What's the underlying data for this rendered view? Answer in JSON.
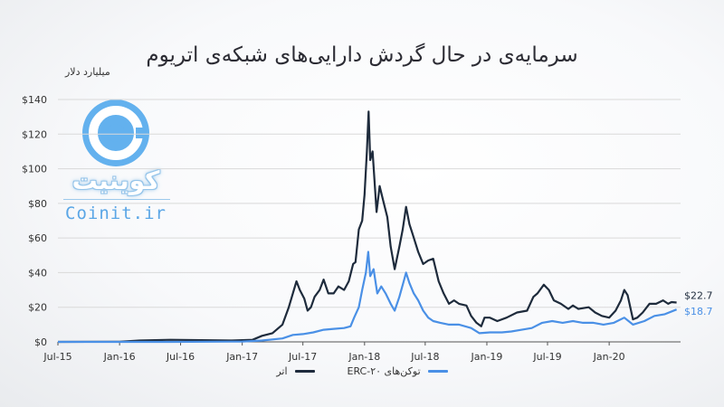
{
  "title": "سرمایه‌ی در حال گردش دارایی‌های شبکه‌ی اتریوم",
  "unit_label": "میلیارد دلار",
  "logo": {
    "brand_fa": "کوینیت",
    "brand_en": "Coinit.ir",
    "icon": "coin-logo-icon"
  },
  "colors": {
    "ether": "#1e2b3c",
    "erc20": "#4a90e6",
    "axis": "#333333",
    "grid": "#d9d9d9"
  },
  "chart_data": {
    "type": "line",
    "title": "سرمایه‌ی در حال گردش دارایی‌های شبکه‌ی اتریوم",
    "ylabel": "میلیارد دلار",
    "ylim": [
      0,
      140
    ],
    "xlim": [
      "2015-07-01",
      "2020-08-01"
    ],
    "y_ticks": [
      0,
      20,
      40,
      60,
      80,
      100,
      120,
      140
    ],
    "y_tick_labels": [
      "$0",
      "$20",
      "$40",
      "$60",
      "$80",
      "$100",
      "$120",
      "$140"
    ],
    "x_ticks": [
      "2015-07-01",
      "2016-01-01",
      "2016-07-01",
      "2017-01-01",
      "2017-07-01",
      "2018-01-01",
      "2018-07-01",
      "2019-01-01",
      "2019-07-01",
      "2020-01-01"
    ],
    "x_tick_labels": [
      "Jul-15",
      "Jan-16",
      "Jul-16",
      "Jan-17",
      "Jul-17",
      "Jan-18",
      "Jul-18",
      "Jan-19",
      "Jul-19",
      "Jan-20"
    ],
    "legend_position": "bottom",
    "series": [
      {
        "name": "اتر",
        "color": "#1e2b3c",
        "end_label": "$22.7",
        "points": [
          [
            "2015-07-01",
            0
          ],
          [
            "2016-01-01",
            0.1
          ],
          [
            "2016-03-01",
            0.8
          ],
          [
            "2016-06-01",
            1.2
          ],
          [
            "2016-09-01",
            1
          ],
          [
            "2016-12-01",
            0.8
          ],
          [
            "2017-02-01",
            1.2
          ],
          [
            "2017-03-01",
            3.5
          ],
          [
            "2017-04-01",
            5
          ],
          [
            "2017-05-01",
            10
          ],
          [
            "2017-05-20",
            20
          ],
          [
            "2017-06-01",
            28
          ],
          [
            "2017-06-12",
            35
          ],
          [
            "2017-06-22",
            30
          ],
          [
            "2017-07-05",
            25
          ],
          [
            "2017-07-15",
            18
          ],
          [
            "2017-07-25",
            20
          ],
          [
            "2017-08-05",
            26
          ],
          [
            "2017-08-20",
            30
          ],
          [
            "2017-09-01",
            36
          ],
          [
            "2017-09-15",
            28
          ],
          [
            "2017-10-01",
            28
          ],
          [
            "2017-10-15",
            32
          ],
          [
            "2017-11-01",
            30
          ],
          [
            "2017-11-15",
            35
          ],
          [
            "2017-11-28",
            45
          ],
          [
            "2017-12-05",
            46
          ],
          [
            "2017-12-15",
            65
          ],
          [
            "2017-12-25",
            70
          ],
          [
            "2018-01-01",
            85
          ],
          [
            "2018-01-08",
            110
          ],
          [
            "2018-01-13",
            133
          ],
          [
            "2018-01-18",
            105
          ],
          [
            "2018-01-25",
            110
          ],
          [
            "2018-02-06",
            75
          ],
          [
            "2018-02-15",
            90
          ],
          [
            "2018-02-25",
            82
          ],
          [
            "2018-03-10",
            72
          ],
          [
            "2018-03-20",
            55
          ],
          [
            "2018-04-01",
            42
          ],
          [
            "2018-04-15",
            55
          ],
          [
            "2018-04-25",
            65
          ],
          [
            "2018-05-05",
            78
          ],
          [
            "2018-05-15",
            68
          ],
          [
            "2018-05-25",
            62
          ],
          [
            "2018-06-10",
            52
          ],
          [
            "2018-06-25",
            45
          ],
          [
            "2018-07-10",
            47
          ],
          [
            "2018-07-25",
            48
          ],
          [
            "2018-08-10",
            35
          ],
          [
            "2018-08-25",
            28
          ],
          [
            "2018-09-10",
            22
          ],
          [
            "2018-09-25",
            24
          ],
          [
            "2018-10-10",
            22
          ],
          [
            "2018-11-01",
            21
          ],
          [
            "2018-11-15",
            15
          ],
          [
            "2018-12-01",
            11
          ],
          [
            "2018-12-15",
            9
          ],
          [
            "2018-12-25",
            14
          ],
          [
            "2019-01-10",
            14
          ],
          [
            "2019-02-01",
            12
          ],
          [
            "2019-03-01",
            14
          ],
          [
            "2019-04-01",
            17
          ],
          [
            "2019-05-01",
            18
          ],
          [
            "2019-05-20",
            26
          ],
          [
            "2019-06-01",
            28
          ],
          [
            "2019-06-20",
            33
          ],
          [
            "2019-07-05",
            30
          ],
          [
            "2019-07-20",
            24
          ],
          [
            "2019-08-10",
            22
          ],
          [
            "2019-09-01",
            19
          ],
          [
            "2019-09-15",
            21
          ],
          [
            "2019-10-01",
            19
          ],
          [
            "2019-11-01",
            20
          ],
          [
            "2019-11-20",
            17
          ],
          [
            "2019-12-10",
            15
          ],
          [
            "2020-01-01",
            14
          ],
          [
            "2020-01-20",
            18
          ],
          [
            "2020-02-05",
            24
          ],
          [
            "2020-02-15",
            30
          ],
          [
            "2020-02-25",
            27
          ],
          [
            "2020-03-12",
            13
          ],
          [
            "2020-03-25",
            14
          ],
          [
            "2020-04-10",
            17
          ],
          [
            "2020-04-30",
            22
          ],
          [
            "2020-05-20",
            22
          ],
          [
            "2020-06-10",
            24
          ],
          [
            "2020-06-25",
            22
          ],
          [
            "2020-07-05",
            23
          ],
          [
            "2020-07-20",
            22.7
          ]
        ]
      },
      {
        "name": "توکن‌های ERC-۲۰",
        "color": "#4a90e6",
        "end_label": "$18.7",
        "points": [
          [
            "2015-07-01",
            0
          ],
          [
            "2016-06-01",
            0
          ],
          [
            "2017-01-01",
            0.2
          ],
          [
            "2017-03-01",
            0.8
          ],
          [
            "2017-05-01",
            2
          ],
          [
            "2017-06-01",
            4
          ],
          [
            "2017-07-01",
            4.5
          ],
          [
            "2017-08-01",
            5.5
          ],
          [
            "2017-09-01",
            7
          ],
          [
            "2017-10-01",
            7.5
          ],
          [
            "2017-11-01",
            8
          ],
          [
            "2017-11-20",
            9
          ],
          [
            "2017-12-01",
            14
          ],
          [
            "2017-12-15",
            20
          ],
          [
            "2017-12-25",
            30
          ],
          [
            "2018-01-05",
            40
          ],
          [
            "2018-01-12",
            52
          ],
          [
            "2018-01-18",
            38
          ],
          [
            "2018-01-28",
            42
          ],
          [
            "2018-02-08",
            28
          ],
          [
            "2018-02-20",
            32
          ],
          [
            "2018-03-05",
            28
          ],
          [
            "2018-03-20",
            22
          ],
          [
            "2018-04-01",
            18
          ],
          [
            "2018-04-15",
            26
          ],
          [
            "2018-04-28",
            35
          ],
          [
            "2018-05-05",
            40
          ],
          [
            "2018-05-15",
            34
          ],
          [
            "2018-05-28",
            28
          ],
          [
            "2018-06-10",
            24
          ],
          [
            "2018-06-25",
            18
          ],
          [
            "2018-07-10",
            14
          ],
          [
            "2018-07-25",
            12
          ],
          [
            "2018-08-15",
            11
          ],
          [
            "2018-09-10",
            10
          ],
          [
            "2018-10-10",
            10
          ],
          [
            "2018-11-15",
            8
          ],
          [
            "2018-12-10",
            5
          ],
          [
            "2019-01-10",
            5.5
          ],
          [
            "2019-02-15",
            5.5
          ],
          [
            "2019-03-15",
            6
          ],
          [
            "2019-04-15",
            7
          ],
          [
            "2019-05-15",
            8
          ],
          [
            "2019-06-15",
            11
          ],
          [
            "2019-07-15",
            12
          ],
          [
            "2019-08-15",
            11
          ],
          [
            "2019-09-15",
            12
          ],
          [
            "2019-10-15",
            11
          ],
          [
            "2019-11-15",
            11
          ],
          [
            "2019-12-15",
            10
          ],
          [
            "2020-01-15",
            11
          ],
          [
            "2020-02-15",
            14
          ],
          [
            "2020-03-12",
            10
          ],
          [
            "2020-04-15",
            12
          ],
          [
            "2020-05-15",
            15
          ],
          [
            "2020-06-15",
            16
          ],
          [
            "2020-07-20",
            18.7
          ]
        ]
      }
    ]
  }
}
